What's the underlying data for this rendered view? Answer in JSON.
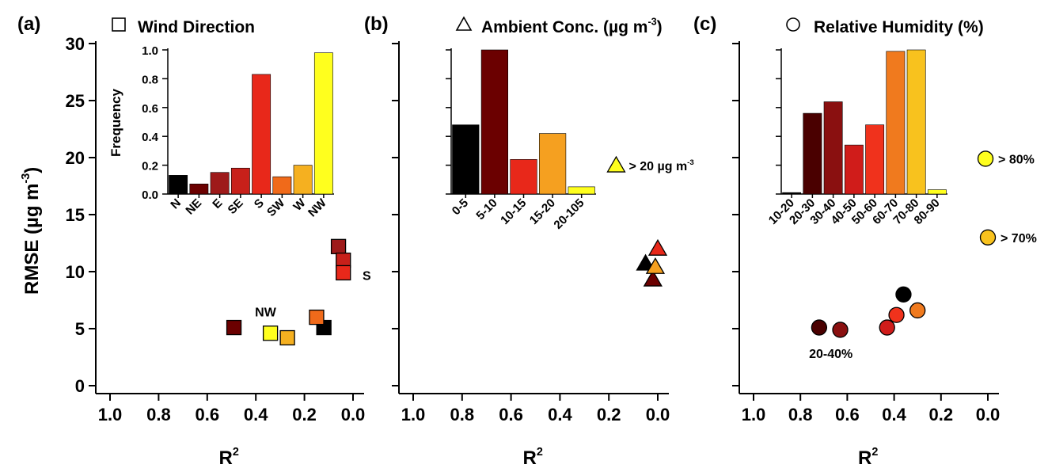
{
  "chart_data": [
    {
      "panel_label": "(a)",
      "type": "scatter",
      "legend_symbol": "square",
      "legend_label": "Wind Direction",
      "xlabel": "R",
      "xlabel_sup": "2",
      "ylabel": "RMSE (µg m",
      "ylabel_sup": "-3",
      "ylabel_close": ")",
      "xlim": [
        1.0,
        0.0
      ],
      "ylim": [
        0,
        30
      ],
      "x_ticks": [
        "1.0",
        "0.8",
        "0.6",
        "0.4",
        "0.2",
        "0.0"
      ],
      "y_ticks": [
        "0",
        "5",
        "10",
        "15",
        "20",
        "25",
        "30"
      ],
      "points": [
        {
          "category": "N",
          "x": 0.12,
          "y": 5.1,
          "color": "#000000"
        },
        {
          "category": "NE",
          "x": 0.49,
          "y": 5.1,
          "color": "#6b0000"
        },
        {
          "category": "E",
          "x": 0.06,
          "y": 12.2,
          "color": "#9e1a1a"
        },
        {
          "category": "SE",
          "x": 0.04,
          "y": 11.0,
          "color": "#c8201a"
        },
        {
          "category": "S",
          "x": 0.04,
          "y": 9.9,
          "color": "#e8281a"
        },
        {
          "category": "SW",
          "x": 0.15,
          "y": 6.0,
          "color": "#f06a1a"
        },
        {
          "category": "W",
          "x": 0.27,
          "y": 4.2,
          "color": "#f5b020"
        },
        {
          "category": "NW",
          "x": 0.34,
          "y": 4.6,
          "color": "#ffff1e"
        }
      ],
      "annotations": [
        {
          "text": "S",
          "x": 0.0,
          "y": 9.9
        },
        {
          "text": "NW",
          "x": 0.36,
          "y": 6.5
        }
      ],
      "inset": {
        "type": "bar",
        "ylabel": "Frequency",
        "ylim": [
          0,
          1.0
        ],
        "y_ticks": [
          "0.0",
          "0.2",
          "0.4",
          "0.6",
          "0.8",
          "1.0"
        ],
        "categories": [
          "N",
          "NE",
          "E",
          "SE",
          "S",
          "SW",
          "W",
          "NW"
        ],
        "values": [
          0.13,
          0.07,
          0.15,
          0.18,
          0.83,
          0.12,
          0.2,
          0.98
        ],
        "colors": [
          "#000000",
          "#6b0000",
          "#9e1a1a",
          "#c8201a",
          "#e8281a",
          "#f06a1a",
          "#f5b020",
          "#ffff1e"
        ]
      }
    },
    {
      "panel_label": "(b)",
      "type": "scatter",
      "legend_symbol": "triangle",
      "legend_label": "Ambient Conc. (µg m",
      "legend_label_sup": "-3",
      "legend_label_close": ")",
      "xlabel": "R",
      "xlabel_sup": "2",
      "xlim": [
        1.0,
        0.0
      ],
      "ylim": [
        0,
        30
      ],
      "x_ticks": [
        "1.0",
        "0.8",
        "0.6",
        "0.4",
        "0.2",
        "0.0"
      ],
      "points": [
        {
          "category": "0-5",
          "x": 0.05,
          "y": 10.7,
          "color": "#000000"
        },
        {
          "category": "5-10",
          "x": 0.02,
          "y": 9.3,
          "color": "#6b0000"
        },
        {
          "category": "10-15",
          "x": 0.0,
          "y": 12.0,
          "color": "#e8281a"
        },
        {
          "category": "15-20",
          "x": 0.01,
          "y": 10.4,
          "color": "#f5a020"
        },
        {
          "category": "20-105",
          "x": 0.17,
          "y": 19.3,
          "color": "#ffff1e"
        }
      ],
      "annotations": [
        {
          "text": "> 20 µg m",
          "sup": "-3",
          "x": 0.17,
          "y": 19.3
        }
      ],
      "inset": {
        "type": "bar",
        "ylim": [
          0,
          1.0
        ],
        "categories": [
          "0-5",
          "5-10",
          "10-15",
          "15-20",
          "20-105"
        ],
        "values": [
          0.48,
          1.0,
          0.24,
          0.42,
          0.05
        ],
        "colors": [
          "#000000",
          "#6b0000",
          "#e8281a",
          "#f5a020",
          "#ffff1e"
        ]
      }
    },
    {
      "panel_label": "(c)",
      "type": "scatter",
      "legend_symbol": "circle",
      "legend_label": "Relative Humidity (%)",
      "xlabel": "R",
      "xlabel_sup": "2",
      "xlim": [
        1.0,
        0.0
      ],
      "ylim": [
        0,
        30
      ],
      "x_ticks": [
        "1.0",
        "0.8",
        "0.6",
        "0.4",
        "0.2",
        "0.0"
      ],
      "points": [
        {
          "category": "20-30",
          "x": 0.72,
          "y": 5.1,
          "color": "#4a0000"
        },
        {
          "category": "30-40",
          "x": 0.63,
          "y": 4.9,
          "color": "#8a1010"
        },
        {
          "category": "40-50",
          "x": 0.43,
          "y": 5.1,
          "color": "#d01c1a"
        },
        {
          "category": "50-60",
          "x": 0.39,
          "y": 6.2,
          "color": "#f0321c"
        },
        {
          "category": "60-70",
          "x": 0.3,
          "y": 6.6,
          "color": "#f07a1e"
        },
        {
          "category": "10-20",
          "x": 0.36,
          "y": 8.0,
          "color": "#000000"
        },
        {
          "category": "70-80",
          "x": 0.0,
          "y": 13.0,
          "color": "#f8c21e"
        },
        {
          "category": "80-90",
          "x": 0.01,
          "y": 19.9,
          "color": "#ffff1e"
        }
      ],
      "annotations": [
        {
          "text": "> 80%",
          "x": 0.01,
          "y": 19.9
        },
        {
          "text": "> 70%",
          "x": 0.0,
          "y": 13.0
        },
        {
          "text": "20-40%",
          "x": 0.67,
          "y": 3.0
        }
      ],
      "inset": {
        "type": "bar",
        "ylim": [
          0,
          1.0
        ],
        "categories": [
          "10-20",
          "20-30",
          "30-40",
          "40-50",
          "50-60",
          "60-70",
          "70-80",
          "80-90"
        ],
        "values": [
          0.01,
          0.56,
          0.64,
          0.34,
          0.48,
          0.99,
          1.0,
          0.03
        ],
        "colors": [
          "#000000",
          "#4a0000",
          "#8a1010",
          "#d01c1a",
          "#f0321c",
          "#f07a1e",
          "#f8c21e",
          "#ffff1e"
        ]
      }
    }
  ]
}
